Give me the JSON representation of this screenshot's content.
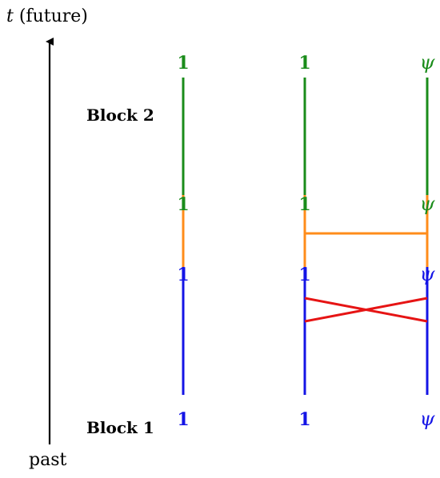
{
  "axis": {
    "label": "t (future)",
    "label_var": "t",
    "label_rest": " (future)",
    "bottom_label": "past"
  },
  "blocks": {
    "top": "Block 2",
    "bottom": "Block 1"
  },
  "colors": {
    "green": "#1a8c1a",
    "orange": "#ff8c1a",
    "blue": "#1414e6",
    "red": "#e61414",
    "axis": "#000000"
  },
  "anyons": {
    "top": [
      "1",
      "1",
      "ψ"
    ],
    "middle": [
      "1",
      "1",
      "ψ"
    ],
    "lower": [
      "1",
      "1",
      "ψ"
    ],
    "bottom": [
      "1",
      "1",
      "ψ"
    ]
  }
}
